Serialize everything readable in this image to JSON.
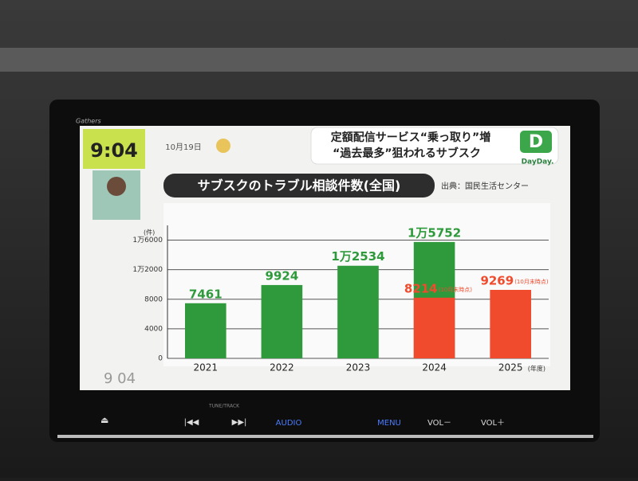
{
  "screen": {
    "brand": "Gathers",
    "clock": "9:04",
    "date": "10月19日",
    "headline": [
      "定額配信サービス“乗っ取り”増",
      "“過去最多”狙われるサブスク"
    ],
    "logo": "D",
    "show": "DayDay.",
    "source": "出典：国民生活センター",
    "watermark": "9 04",
    "buttons": {
      "tune": "TUNE/TRACK",
      "audio": "AUDIO",
      "menu": "MENU",
      "vol_down": "VOL－",
      "vol_up": "VOL＋"
    }
  },
  "chart_data": {
    "type": "bar",
    "title": "サブスクのトラブル相談件数(全国)",
    "y_unit": "(件)",
    "x_unit": "(年度)",
    "categories": [
      "2021",
      "2022",
      "2023",
      "2024",
      "2025"
    ],
    "series": [
      {
        "color": "#2f9a3c",
        "values": [
          7461,
          9924,
          12534,
          15752,
          null
        ],
        "value_labels": [
          "7461",
          "9924",
          "1万2534",
          "1万5752",
          null
        ]
      },
      {
        "color": "#f04b2d",
        "values": [
          null,
          null,
          null,
          8214,
          9269
        ],
        "value_labels": [
          null,
          null,
          null,
          "8214",
          "9269"
        ],
        "notes": [
          null,
          null,
          null,
          "(10月末時点)",
          "(10月末時点)"
        ]
      }
    ],
    "ylim": [
      0,
      18000
    ],
    "yticks": [
      0,
      4000,
      8000,
      {
        "value": 12000,
        "label": "1万2000"
      },
      {
        "value": 16000,
        "label": "1万6000"
      }
    ],
    "grid": true
  }
}
